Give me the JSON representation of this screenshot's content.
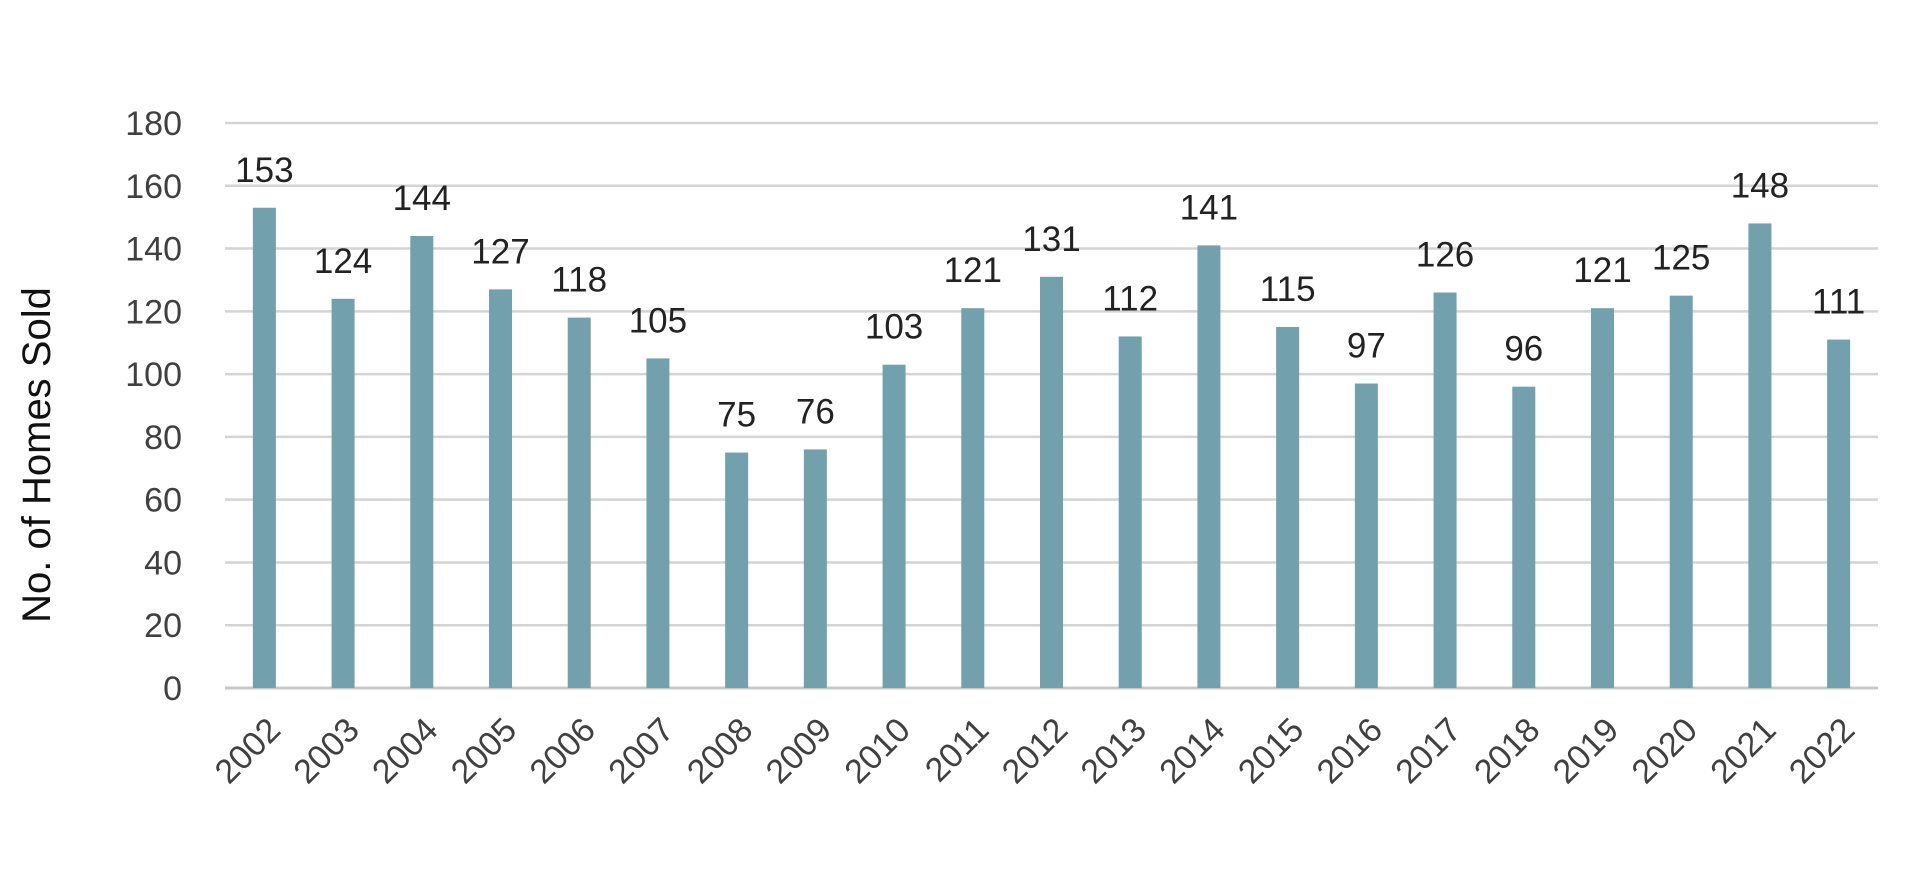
{
  "chart_data": {
    "type": "bar",
    "title": "",
    "xlabel": "",
    "ylabel": "No. of Homes Sold",
    "ylim": [
      0,
      180
    ],
    "yticks": [
      0,
      20,
      40,
      60,
      80,
      100,
      120,
      140,
      160,
      180
    ],
    "grid": true,
    "legend": "none",
    "categories": [
      "2002",
      "2003",
      "2004",
      "2005",
      "2006",
      "2007",
      "2008",
      "2009",
      "2010",
      "2011",
      "2012",
      "2013",
      "2014",
      "2015",
      "2016",
      "2017",
      "2018",
      "2019",
      "2020",
      "2021",
      "2022"
    ],
    "values": [
      153,
      124,
      144,
      127,
      118,
      105,
      75,
      76,
      103,
      121,
      131,
      112,
      141,
      115,
      97,
      126,
      96,
      121,
      125,
      148,
      111
    ],
    "data_labels": [
      "153",
      "124",
      "144",
      "127",
      "118",
      "105",
      "75",
      "76",
      "103",
      "121",
      "131",
      "112",
      "141",
      "115",
      "97",
      "126",
      "96",
      "121",
      "125",
      "148",
      "111"
    ],
    "colors": {
      "bar": "#72a0ad",
      "grid": "#d4d4d4",
      "text": "#404040"
    }
  }
}
